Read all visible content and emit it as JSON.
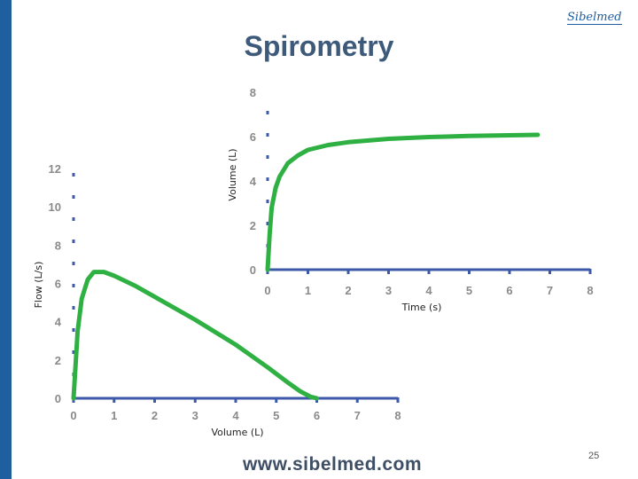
{
  "slide": {
    "title": "Spirometry",
    "logo_text": "Sibelmed",
    "footer_url": "www.sibelmed.com",
    "page_number": "25",
    "accent_color": "#1f5fa0"
  },
  "chart_data": [
    {
      "type": "line",
      "name": "volume-time",
      "xlabel": "Time (s)",
      "ylabel": "Volume (L)",
      "xlim": [
        0,
        8
      ],
      "ylim": [
        0,
        8
      ],
      "x_ticks": [
        "0",
        "1",
        "2",
        "3",
        "4",
        "5",
        "6",
        "7",
        "8"
      ],
      "y_ticks": [
        "0",
        "2",
        "4",
        "6",
        "8"
      ],
      "line_color": "#2fb043",
      "series": [
        {
          "x": [
            0,
            0.05,
            0.1,
            0.2,
            0.3,
            0.5,
            0.75,
            1.0,
            1.5,
            2.0,
            3.0,
            4.0,
            5.0,
            6.0,
            6.7
          ],
          "y": [
            0,
            1.6,
            2.8,
            3.7,
            4.2,
            4.8,
            5.15,
            5.4,
            5.62,
            5.75,
            5.9,
            5.98,
            6.03,
            6.06,
            6.08
          ]
        }
      ]
    },
    {
      "type": "line",
      "name": "flow-volume",
      "xlabel": "Volume (L)",
      "ylabel": "Flow (L/s)",
      "xlim": [
        0,
        8
      ],
      "ylim": [
        0,
        12
      ],
      "x_ticks": [
        "0",
        "1",
        "2",
        "3",
        "4",
        "5",
        "6",
        "7",
        "8"
      ],
      "y_ticks": [
        "0",
        "2",
        "4",
        "6",
        "8",
        "10",
        "12"
      ],
      "line_color": "#2fb043",
      "series": [
        {
          "x": [
            0,
            0.1,
            0.2,
            0.35,
            0.5,
            0.75,
            1.0,
            1.5,
            2.0,
            3.0,
            4.0,
            4.8,
            5.3,
            5.6,
            5.85,
            6.0
          ],
          "y": [
            0,
            3.5,
            5.2,
            6.2,
            6.6,
            6.6,
            6.4,
            5.9,
            5.3,
            4.1,
            2.8,
            1.6,
            0.8,
            0.35,
            0.08,
            0
          ]
        }
      ]
    }
  ]
}
